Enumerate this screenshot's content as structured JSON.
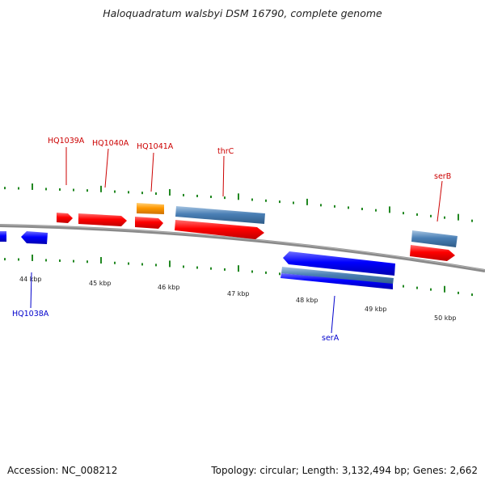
{
  "title": "Haloquadratum walsbyi DSM 16790, complete genome",
  "footer": {
    "accession": "Accession: NC_008212",
    "stats": "Topology: circular; Length: 3,132,494 bp; Genes: 2,662"
  },
  "ruler_labels": [
    "44 kbp",
    "45 kbp",
    "46 kbp",
    "47 kbp",
    "48 kbp",
    "49 kbp",
    "50 kbp"
  ],
  "gene_labels": {
    "hq1039a": "HQ1039A",
    "hq1040a": "HQ1040A",
    "hq1041a": "HQ1041A",
    "thrc": "thrC",
    "serb": "serB",
    "hq1038a": "HQ1038A",
    "sera": "serA"
  },
  "colors": {
    "forward_cds": "#ff0000",
    "reverse_cds": "#0000ff",
    "gene_feature": "#4a7fb5",
    "other_feature": "#ff9900",
    "forward_label": "#cc0000",
    "reverse_label": "#0000cc",
    "backbone": "#888888",
    "ticks": "#228822"
  }
}
